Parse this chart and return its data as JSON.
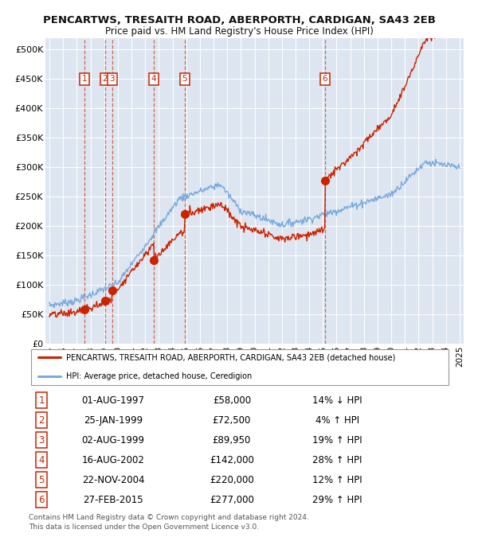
{
  "title": "PENCARTWS, TRESAITH ROAD, ABERPORTH, CARDIGAN, SA43 2EB",
  "subtitle": "Price paid vs. HM Land Registry's House Price Index (HPI)",
  "xlim": [
    1994.7,
    2025.3
  ],
  "ylim": [
    0,
    520000
  ],
  "ytick_vals": [
    0,
    50000,
    100000,
    150000,
    200000,
    250000,
    300000,
    350000,
    400000,
    450000,
    500000
  ],
  "ytick_labels": [
    "£0",
    "£50K",
    "£100K",
    "£150K",
    "£200K",
    "£250K",
    "£300K",
    "£350K",
    "£400K",
    "£450K",
    "£500K"
  ],
  "bg_color": "#dde6f0",
  "sale_points": [
    {
      "num": 1,
      "date": "01-AUG-1997",
      "price": 58000,
      "year": 1997.58,
      "label": "14% ↓ HPI"
    },
    {
      "num": 2,
      "date": "25-JAN-1999",
      "price": 72500,
      "year": 1999.07,
      "label": "4% ↑ HPI"
    },
    {
      "num": 3,
      "date": "02-AUG-1999",
      "price": 89950,
      "year": 1999.58,
      "label": "19% ↑ HPI"
    },
    {
      "num": 4,
      "date": "16-AUG-2002",
      "price": 142000,
      "year": 2002.62,
      "label": "28% ↑ HPI"
    },
    {
      "num": 5,
      "date": "22-NOV-2004",
      "price": 220000,
      "year": 2004.89,
      "label": "12% ↑ HPI"
    },
    {
      "num": 6,
      "date": "27-FEB-2015",
      "price": 277000,
      "year": 2015.15,
      "label": "29% ↑ HPI"
    }
  ],
  "legend_line1": "PENCARTWS, TRESAITH ROAD, ABERPORTH, CARDIGAN, SA43 2EB (detached house)",
  "legend_line2": "HPI: Average price, detached house, Ceredigion",
  "footer1": "Contains HM Land Registry data © Crown copyright and database right 2024.",
  "footer2": "This data is licensed under the Open Government Licence v3.0.",
  "red_color": "#cc2200",
  "blue_color": "#7aaadd",
  "white": "#ffffff"
}
